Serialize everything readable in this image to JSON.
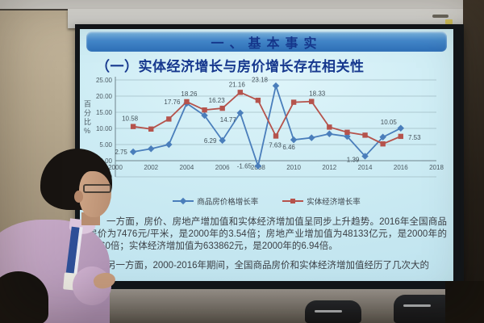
{
  "slide": {
    "banner_title": "一、基本事实",
    "title": "（一）实体经济增长与房价增长存在相关性",
    "paragraph1": "一方面，房价、房地产增加值和实体经济增加值呈同步上升趋势。2016年全国商品房价为7476元/平米，是2000年的3.54倍；房地产业增加值为48133亿元，是2000年的11.60倍；实体经济增加值为633862元，是2000年的6.94倍。",
    "paragraph2": "另一方面，2000-2016年期间，全国商品房价和实体经济增加值经历了几次大的",
    "colors": {
      "banner_bg": "#3d7fc4",
      "banner_text": "#16388e",
      "title_text": "#16388e",
      "body_text": "#3c4046",
      "slide_bg": "#cdecf4"
    }
  },
  "chart_data": {
    "type": "line",
    "ylabel": "百分比%",
    "xlim": [
      2000,
      2018
    ],
    "ylim": [
      -5,
      25
    ],
    "xticks": [
      2000,
      2002,
      2004,
      2006,
      2008,
      2010,
      2012,
      2014,
      2016,
      2018
    ],
    "ytick_values": [
      25,
      20,
      15,
      10,
      5,
      0,
      -5
    ],
    "yticks": [
      "25.00",
      "20.00",
      "15.00",
      "10.00",
      "5.00",
      "0.00",
      "-5.00"
    ],
    "grid": true,
    "legend_position": "bottom",
    "x": [
      2001,
      2002,
      2003,
      2004,
      2005,
      2006,
      2007,
      2008,
      2009,
      2010,
      2011,
      2012,
      2013,
      2014,
      2015,
      2016
    ],
    "series": [
      {
        "name": "商品房价格增长率",
        "color": "#4a7ebb",
        "marker": "diamond",
        "values": [
          2.75,
          3.7,
          5.0,
          17.76,
          14.0,
          6.29,
          14.77,
          -1.65,
          23.18,
          6.46,
          7.1,
          8.3,
          7.5,
          1.39,
          7.3,
          10.05
        ],
        "labels": [
          {
            "x": 2001,
            "text": "2.75",
            "dx": -15,
            "dy": 3
          },
          {
            "x": 2004,
            "text": "17.76",
            "dx": -18,
            "dy": 1
          },
          {
            "x": 2006,
            "text": "6.29",
            "dx": -15,
            "dy": 3
          },
          {
            "x": 2007,
            "text": "14.77",
            "dx": -15,
            "dy": 11
          },
          {
            "x": 2008,
            "text": "-1.65",
            "dx": -17,
            "dy": 3
          },
          {
            "x": 2009,
            "text": "23.18",
            "dx": -20,
            "dy": -5
          },
          {
            "x": 2010,
            "text": "6.46",
            "dx": -6,
            "dy": 12
          },
          {
            "x": 2014,
            "text": "1.39",
            "dx": -15,
            "dy": 7
          },
          {
            "x": 2016,
            "text": "10.05",
            "dx": -15,
            "dy": -5
          }
        ]
      },
      {
        "name": "实体经济增长率",
        "color": "#b5534c",
        "marker": "square",
        "values": [
          10.58,
          9.8,
          12.9,
          18.26,
          15.7,
          16.23,
          21.16,
          18.7,
          7.63,
          18.1,
          18.33,
          10.4,
          8.8,
          7.9,
          5.2,
          7.53
        ],
        "labels": [
          {
            "x": 2001,
            "text": "10.58",
            "dx": -4,
            "dy": -7
          },
          {
            "x": 2004,
            "text": "18.26",
            "dx": 3,
            "dy": -7
          },
          {
            "x": 2006,
            "text": "16.23",
            "dx": -7,
            "dy": -7
          },
          {
            "x": 2007,
            "text": "21.16",
            "dx": -4,
            "dy": -7
          },
          {
            "x": 2009,
            "text": "7.63",
            "dx": -1,
            "dy": 14
          },
          {
            "x": 2011,
            "text": "18.33",
            "dx": 7,
            "dy": -7
          },
          {
            "x": 2016,
            "text": "7.53",
            "dx": 17,
            "dy": 4
          }
        ]
      }
    ]
  }
}
